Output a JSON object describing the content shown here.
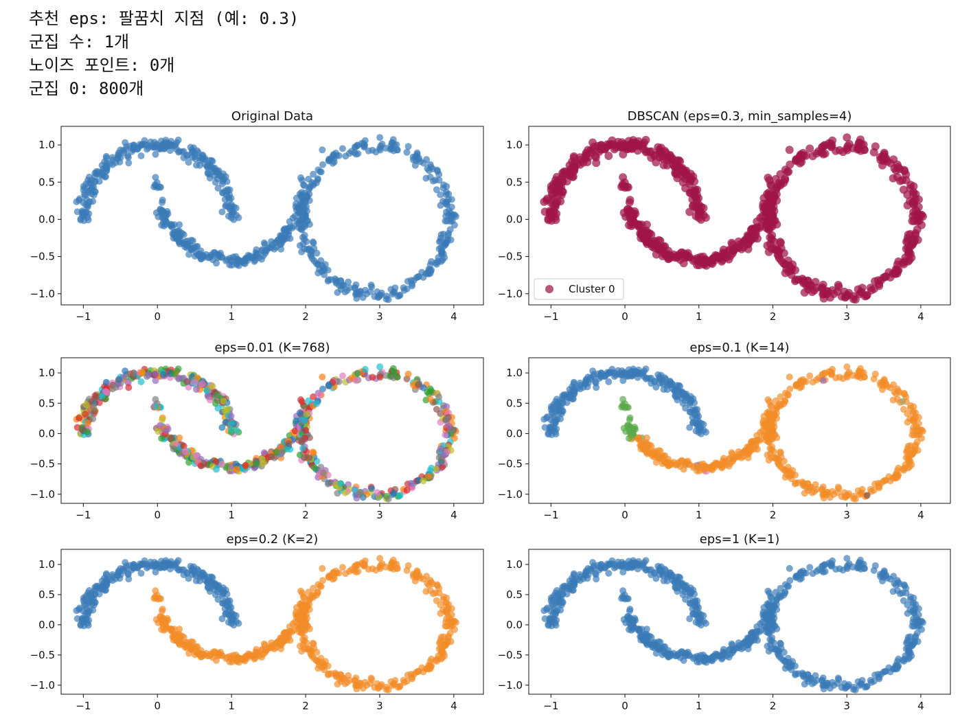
{
  "console": {
    "lines": [
      "추천 eps: 팔꿈치 지점 (예: 0.3)",
      "군집 수: 1개",
      "노이즈 포인트: 0개",
      "군집 0: 800개"
    ]
  },
  "chart_data": [
    {
      "type": "scatter",
      "title": "Original Data",
      "xlabel": "",
      "ylabel": "",
      "xlim": [
        -1.3,
        4.4
      ],
      "ylim": [
        -1.15,
        1.25
      ],
      "xticks": [
        "−1",
        "0",
        "1",
        "2",
        "3",
        "4"
      ],
      "yticks": [
        "−1.0",
        "−0.5",
        "0.0",
        "0.5",
        "1.0"
      ],
      "n_points": 800,
      "data_description": "two interlocking moons: upper arc centered (0,0) radius 1, lower arc centered (1,0.5); plus a circle centered (2.9,0) radius ~1",
      "colors": [
        "#3a7ab7"
      ],
      "grid": false
    },
    {
      "type": "scatter",
      "title": "DBSCAN (eps=0.3, min_samples=4)",
      "xlabel": "",
      "ylabel": "",
      "xlim": [
        -1.3,
        4.4
      ],
      "ylim": [
        -1.15,
        1.25
      ],
      "xticks": [
        "−1",
        "0",
        "1",
        "2",
        "3",
        "4"
      ],
      "yticks": [
        "−1.0",
        "−0.5",
        "0.0",
        "0.5",
        "1.0"
      ],
      "n_clusters": 1,
      "colors": [
        "#a0154a"
      ],
      "legend": {
        "placement": "lower-left",
        "entries": [
          "Cluster 0"
        ]
      },
      "grid": false
    },
    {
      "type": "scatter",
      "title": "eps=0.01 (K=768)",
      "xlabel": "",
      "ylabel": "",
      "xlim": [
        -1.3,
        4.4
      ],
      "ylim": [
        -1.15,
        1.25
      ],
      "xticks": [
        "−1",
        "0",
        "1",
        "2",
        "3",
        "4"
      ],
      "yticks": [
        "−1.0",
        "−0.5",
        "0.0",
        "0.5",
        "1.0"
      ],
      "n_clusters": 768,
      "colors": [
        "#1f77b4",
        "#ff7f0e",
        "#2ca02c",
        "#d62728",
        "#9467bd",
        "#8c564b",
        "#e377c2",
        "#7f7f7f",
        "#bcbd22",
        "#17becf"
      ],
      "grid": false
    },
    {
      "type": "scatter",
      "title": "eps=0.1 (K=14)",
      "xlabel": "",
      "ylabel": "",
      "xlim": [
        -1.3,
        4.4
      ],
      "ylim": [
        -1.15,
        1.25
      ],
      "xticks": [
        "−1",
        "0",
        "1",
        "2",
        "3",
        "4"
      ],
      "yticks": [
        "−1.0",
        "−0.5",
        "0.0",
        "0.5",
        "1.0"
      ],
      "n_clusters": 14,
      "colors": [
        "#3a7ab7",
        "#f28c28",
        "#5aa94a",
        "#d62728",
        "#9467bd",
        "#17becf",
        "#e377c2",
        "#8c564b"
      ],
      "grid": false
    },
    {
      "type": "scatter",
      "title": "eps=0.2 (K=2)",
      "xlabel": "",
      "ylabel": "",
      "xlim": [
        -1.3,
        4.4
      ],
      "ylim": [
        -1.15,
        1.25
      ],
      "xticks": [
        "−1",
        "0",
        "1",
        "2",
        "3",
        "4"
      ],
      "yticks": [
        "−1.0",
        "−0.5",
        "0.0",
        "0.5",
        "1.0"
      ],
      "n_clusters": 2,
      "colors": [
        "#3a7ab7",
        "#f28c28"
      ],
      "grid": false
    },
    {
      "type": "scatter",
      "title": "eps=1 (K=1)",
      "xlabel": "",
      "ylabel": "",
      "xlim": [
        -1.3,
        4.4
      ],
      "ylim": [
        -1.15,
        1.25
      ],
      "xticks": [
        "−1",
        "0",
        "1",
        "2",
        "3",
        "4"
      ],
      "yticks": [
        "−1.0",
        "−0.5",
        "0.0",
        "0.5",
        "1.0"
      ],
      "n_clusters": 1,
      "colors": [
        "#3a7ab7"
      ],
      "grid": false
    }
  ]
}
